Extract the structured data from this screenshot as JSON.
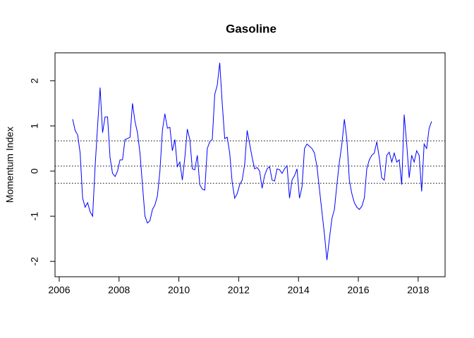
{
  "chart_data": {
    "type": "line",
    "title": "Gasoline",
    "y_label": "Momentum Index",
    "xlim": [
      2005.86,
      2018.9
    ],
    "ylim": [
      -2.34,
      2.62
    ],
    "xticks": [
      2006,
      2008,
      2010,
      2012,
      2014,
      2016,
      2018
    ],
    "yticks": [
      -2,
      -1,
      0,
      1,
      2
    ],
    "hlines": [
      0.67,
      0.11,
      -0.27
    ],
    "x": [
      2006.45,
      2006.533,
      2006.617,
      2006.7,
      2006.783,
      2006.867,
      2006.95,
      2007.033,
      2007.117,
      2007.2,
      2007.283,
      2007.367,
      2007.45,
      2007.533,
      2007.617,
      2007.7,
      2007.783,
      2007.867,
      2007.95,
      2008.033,
      2008.117,
      2008.2,
      2008.283,
      2008.367,
      2008.45,
      2008.533,
      2008.617,
      2008.7,
      2008.783,
      2008.867,
      2008.95,
      2009.033,
      2009.117,
      2009.2,
      2009.283,
      2009.367,
      2009.45,
      2009.533,
      2009.617,
      2009.7,
      2009.783,
      2009.867,
      2009.95,
      2010.033,
      2010.117,
      2010.2,
      2010.283,
      2010.367,
      2010.45,
      2010.533,
      2010.617,
      2010.7,
      2010.783,
      2010.867,
      2010.95,
      2011.033,
      2011.117,
      2011.2,
      2011.283,
      2011.367,
      2011.45,
      2011.533,
      2011.617,
      2011.7,
      2011.783,
      2011.867,
      2011.95,
      2012.033,
      2012.117,
      2012.2,
      2012.283,
      2012.367,
      2012.45,
      2012.533,
      2012.617,
      2012.7,
      2012.783,
      2012.867,
      2012.95,
      2013.033,
      2013.117,
      2013.2,
      2013.283,
      2013.367,
      2013.45,
      2013.533,
      2013.617,
      2013.7,
      2013.783,
      2013.867,
      2013.95,
      2014.033,
      2014.117,
      2014.2,
      2014.283,
      2014.367,
      2014.45,
      2014.533,
      2014.617,
      2014.7,
      2014.783,
      2014.867,
      2014.95,
      2015.033,
      2015.117,
      2015.2,
      2015.283,
      2015.367,
      2015.45,
      2015.533,
      2015.617,
      2015.7,
      2015.783,
      2015.867,
      2015.95,
      2016.033,
      2016.117,
      2016.2,
      2016.283,
      2016.367,
      2016.45,
      2016.533,
      2016.617,
      2016.7,
      2016.783,
      2016.867,
      2016.95,
      2017.033,
      2017.117,
      2017.2,
      2017.283,
      2017.367,
      2017.45,
      2017.533,
      2017.617,
      2017.7,
      2017.783,
      2017.867,
      2017.95,
      2018.033,
      2018.117,
      2018.2,
      2018.283,
      2018.367,
      2018.45
    ],
    "series": [
      {
        "color": "#0000ff",
        "values": [
          1.15,
          0.9,
          0.8,
          0.4,
          -0.6,
          -0.8,
          -0.7,
          -0.9,
          -1.0,
          0.1,
          1.0,
          1.85,
          0.85,
          1.2,
          1.2,
          0.3,
          -0.05,
          -0.12,
          0.0,
          0.25,
          0.25,
          0.7,
          0.72,
          0.75,
          1.5,
          1.1,
          0.85,
          0.4,
          -0.3,
          -1.0,
          -1.15,
          -1.1,
          -0.85,
          -0.75,
          -0.55,
          0.0,
          0.9,
          1.27,
          0.95,
          0.97,
          0.45,
          0.7,
          0.1,
          0.2,
          -0.2,
          0.3,
          0.93,
          0.7,
          0.05,
          0.03,
          0.35,
          -0.3,
          -0.4,
          -0.42,
          0.5,
          0.65,
          0.7,
          1.7,
          1.9,
          2.4,
          1.5,
          0.72,
          0.75,
          0.4,
          -0.25,
          -0.6,
          -0.5,
          -0.3,
          -0.2,
          0.15,
          0.9,
          0.6,
          0.3,
          0.05,
          0.08,
          0.0,
          -0.38,
          -0.1,
          0.05,
          0.1,
          -0.2,
          -0.22,
          0.05,
          0.03,
          -0.05,
          0.05,
          0.12,
          -0.6,
          -0.2,
          -0.1,
          0.05,
          -0.6,
          -0.35,
          0.5,
          0.6,
          0.55,
          0.5,
          0.4,
          0.1,
          -0.4,
          -0.9,
          -1.4,
          -1.97,
          -1.5,
          -1.05,
          -0.85,
          -0.3,
          0.2,
          0.6,
          1.15,
          0.7,
          -0.2,
          -0.5,
          -0.7,
          -0.8,
          -0.85,
          -0.78,
          -0.6,
          0.05,
          0.25,
          0.35,
          0.4,
          0.65,
          0.3,
          -0.15,
          -0.2,
          0.35,
          0.42,
          0.2,
          0.4,
          0.2,
          0.25,
          -0.3,
          1.25,
          0.6,
          -0.15,
          0.35,
          0.2,
          0.45,
          0.35,
          -0.45,
          0.6,
          0.5,
          0.95,
          1.1
        ]
      }
    ]
  }
}
